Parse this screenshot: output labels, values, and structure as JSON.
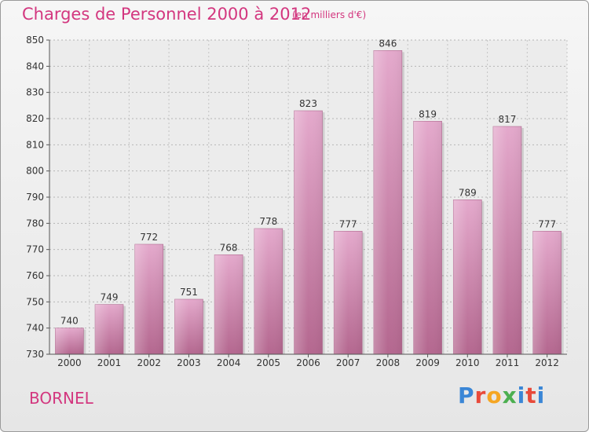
{
  "header": {
    "title": "Charges de Personnel 2000 à 2012",
    "unit": "(en milliers d'€)"
  },
  "footer": {
    "commune": "BORNEL",
    "logo_letters": [
      "P",
      "r",
      "o",
      "x",
      "i",
      "t",
      "i"
    ]
  },
  "colors": {
    "bar": "#c77fa8",
    "bar_light": "#e3a8cb",
    "title": "#d3377f"
  },
  "chart_data": {
    "type": "bar",
    "title": "Charges de Personnel 2000 à 2012",
    "subtitle": "(en milliers d'€)",
    "categories": [
      "2000",
      "2001",
      "2002",
      "2003",
      "2004",
      "2005",
      "2006",
      "2007",
      "2008",
      "2009",
      "2010",
      "2011",
      "2012"
    ],
    "values": [
      740,
      749,
      772,
      751,
      768,
      778,
      823,
      777,
      846,
      819,
      789,
      817,
      777
    ],
    "ylim": [
      730,
      850
    ],
    "yticks": [
      730,
      740,
      750,
      760,
      770,
      780,
      790,
      800,
      810,
      820,
      830,
      840,
      850
    ],
    "grid": true
  }
}
